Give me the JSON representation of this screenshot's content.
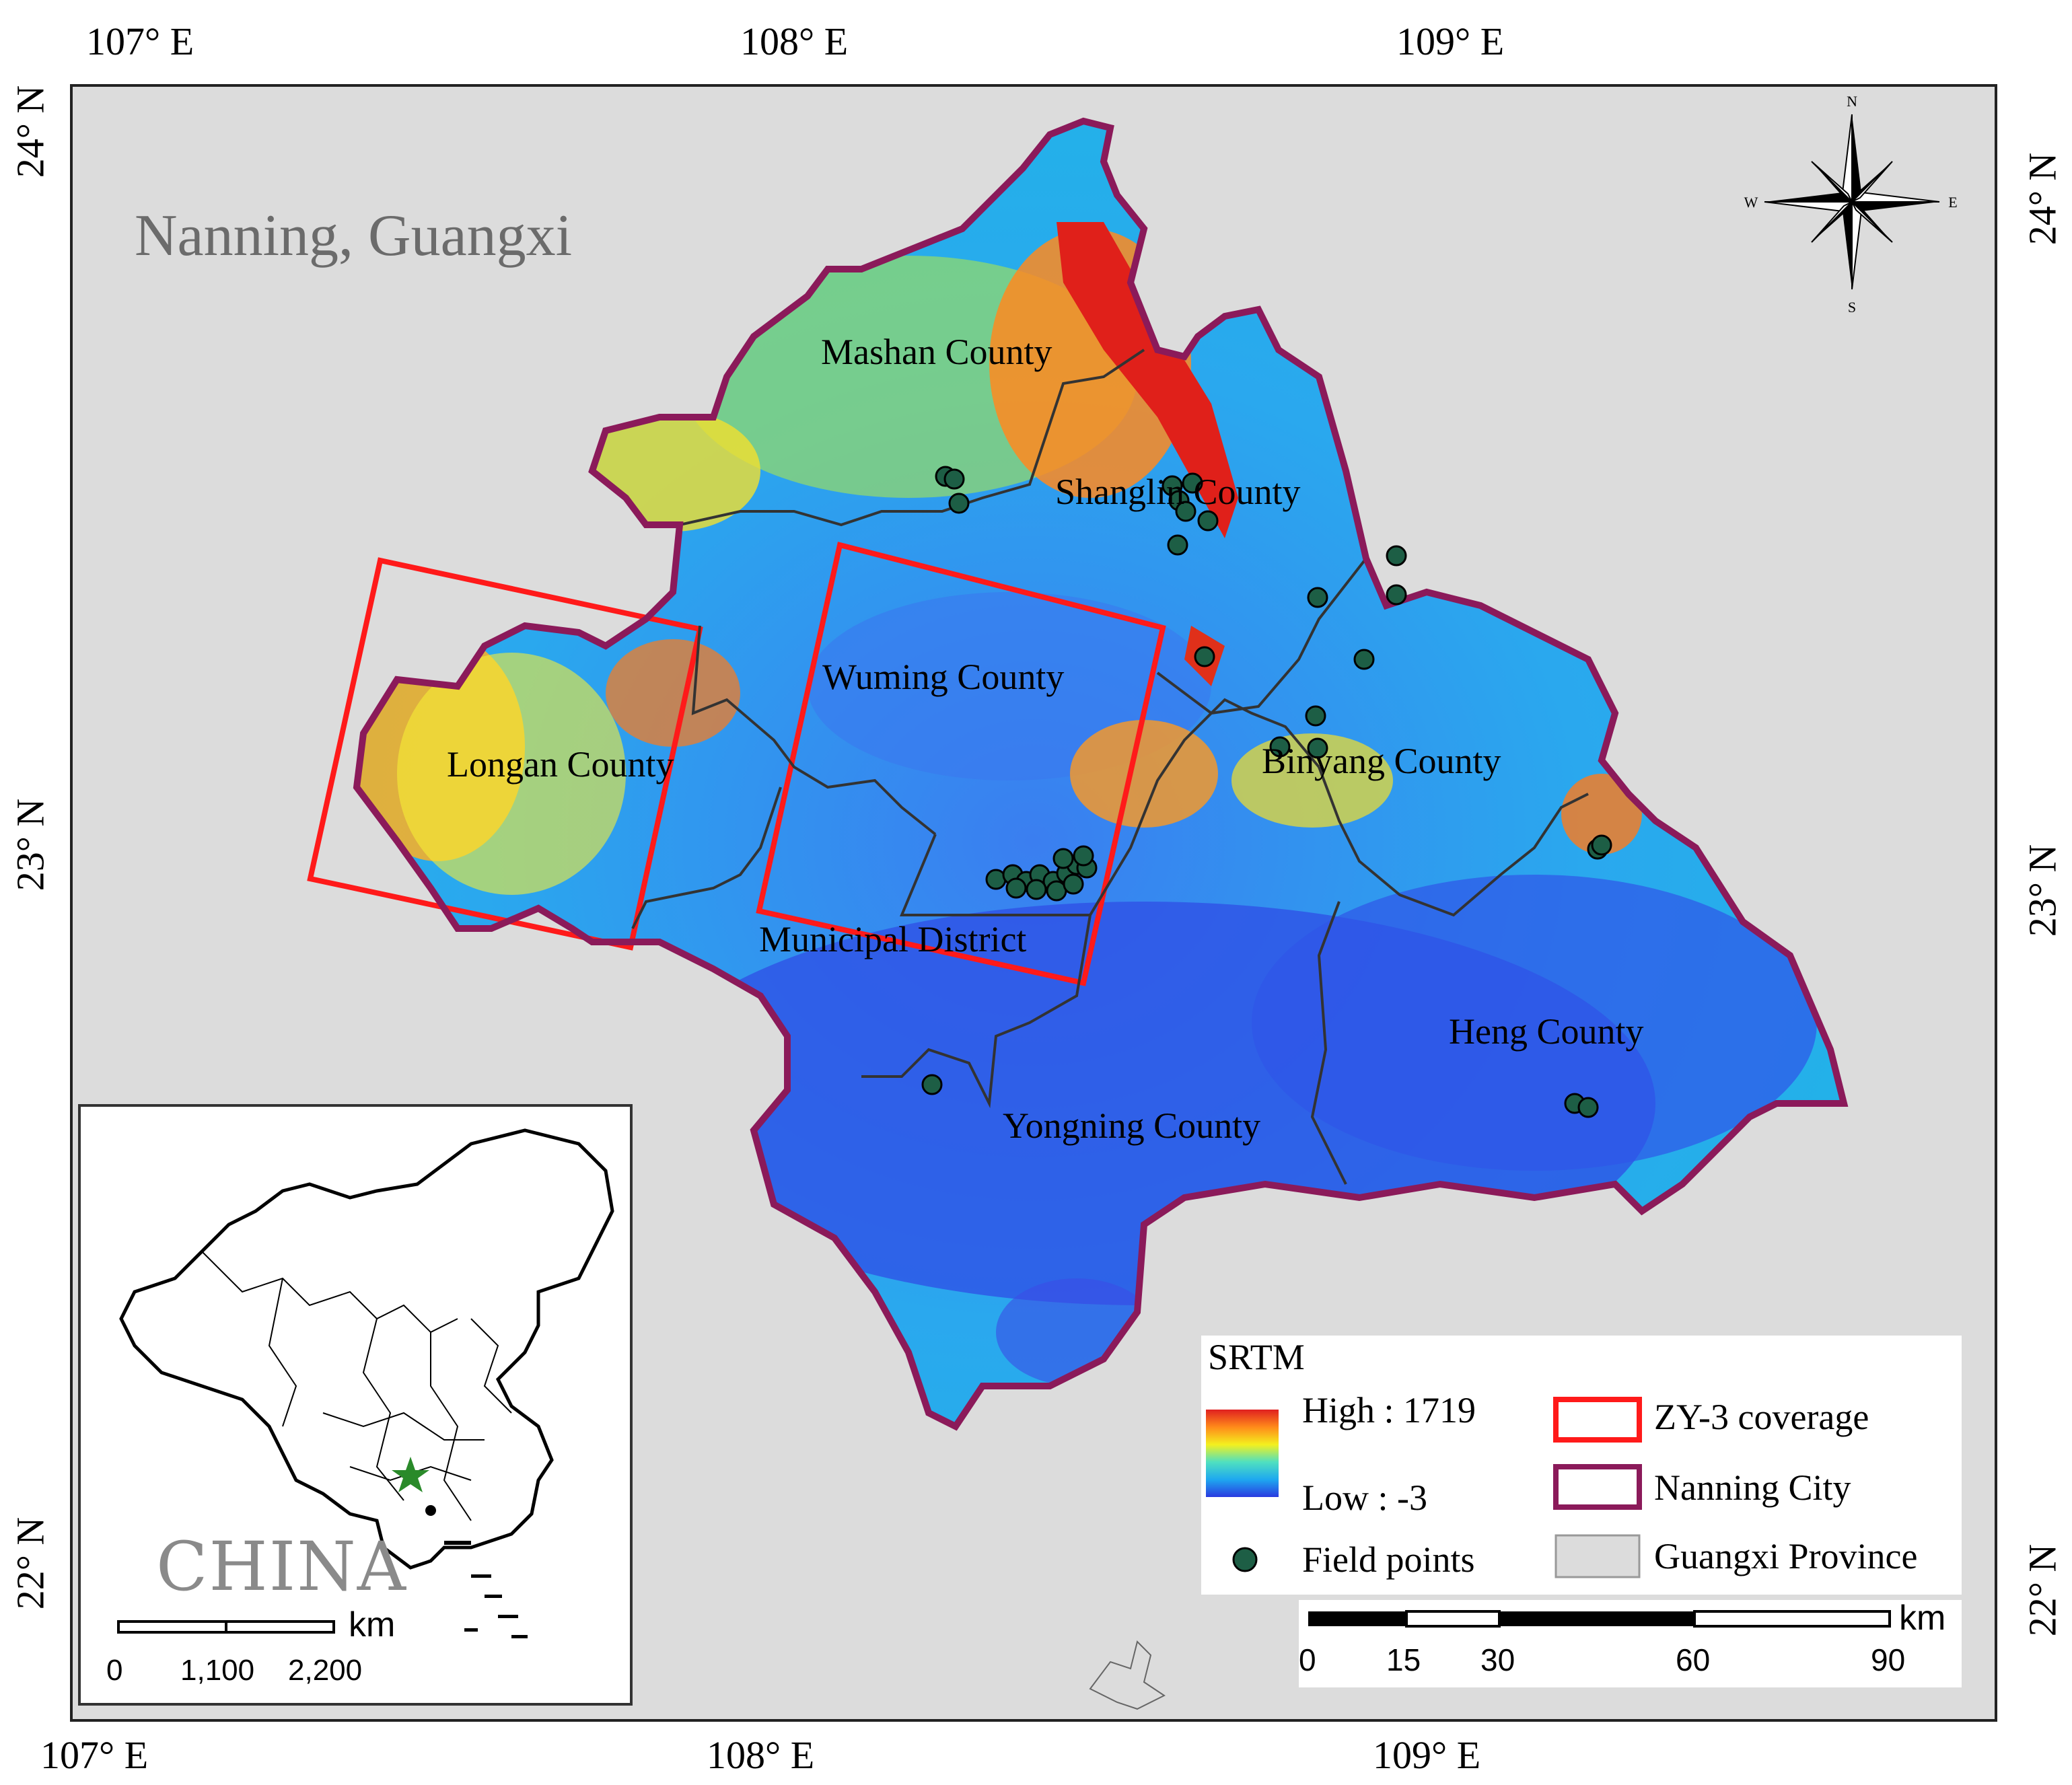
{
  "coordinates": {
    "top": [
      "107° E",
      "108° E",
      "109° E"
    ],
    "bottom": [
      "107° E",
      "108° E",
      "109° E"
    ],
    "left": [
      "24° N",
      "23° N",
      "22° N"
    ],
    "right": [
      "24° N",
      "23° N",
      "22° N"
    ]
  },
  "map_title": "Nanning, Guangxi",
  "counties": [
    "Mashan County",
    "Shanglin County",
    "Wuming County",
    "Longan County",
    "Binyang County",
    "Municipal District",
    "Heng County",
    "Yongning County"
  ],
  "compass": {
    "n": "N",
    "s": "S",
    "e": "E",
    "w": "W"
  },
  "inset": {
    "country": "CHINA",
    "scale_unit": "km",
    "scale_ticks": [
      "0",
      "1,100",
      "2,200"
    ]
  },
  "legend": {
    "heading": "SRTM",
    "high": "High : 1719",
    "low": "Low : -3",
    "field_points": "Field points",
    "zy3": "ZY-3 coverage",
    "nanning": "Nanning City",
    "guangxi": "Guangxi Province"
  },
  "scalebar": {
    "unit": "km",
    "ticks": [
      "0",
      "15",
      "30",
      "60",
      "90"
    ]
  },
  "colors": {
    "province_fill": "#dcdcdc",
    "city_boundary": "#8b1a5a",
    "zy3_coverage": "#ff1a1a",
    "field_point": "#1d5e45",
    "elevation_high": "#e02020",
    "elevation_low": "#2a3ae0"
  }
}
